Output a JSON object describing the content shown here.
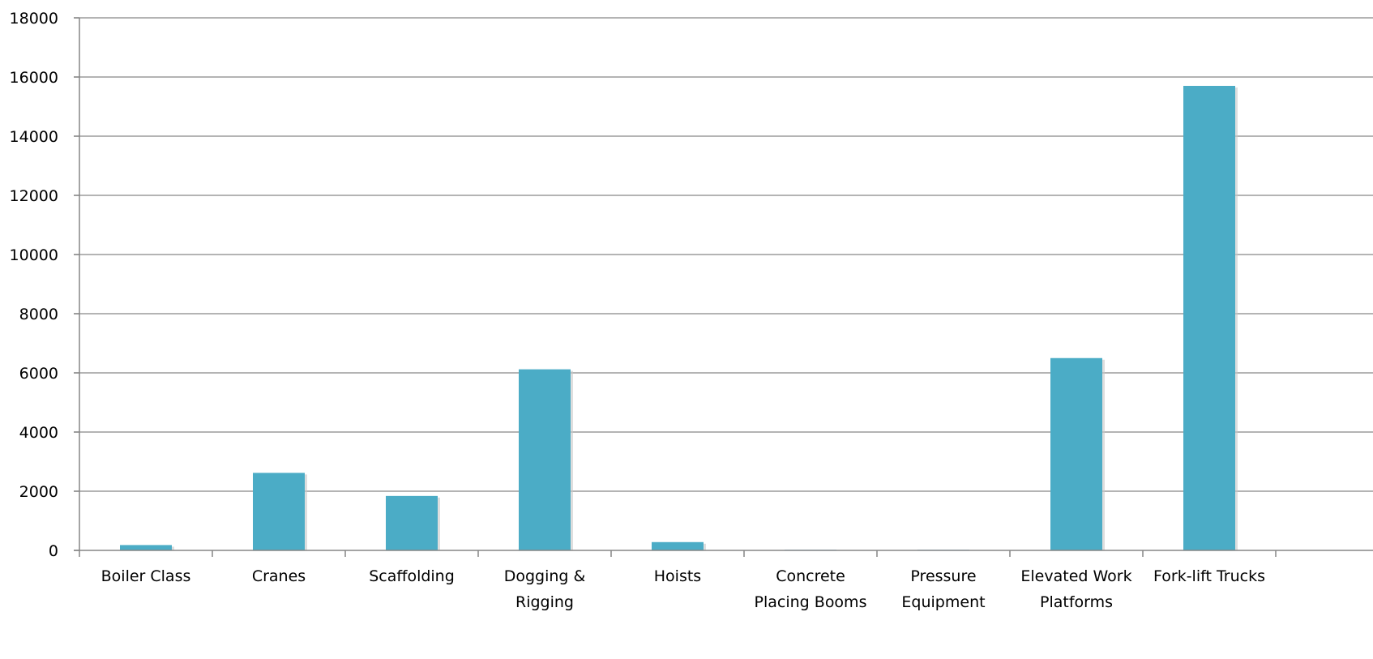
{
  "chart_data": {
    "type": "bar",
    "title": "",
    "xlabel": "",
    "ylabel": "",
    "categories": [
      [
        "Boiler Class"
      ],
      [
        "Cranes"
      ],
      [
        "Scaffolding"
      ],
      [
        "Dogging &",
        "Rigging"
      ],
      [
        "Hoists"
      ],
      [
        "Concrete",
        "Placing Booms"
      ],
      [
        "Pressure",
        "Equipment"
      ],
      [
        "Elevated Work",
        "Platforms"
      ],
      [
        "Fork-lift Trucks"
      ]
    ],
    "values": [
      180,
      2620,
      1840,
      6120,
      280,
      20,
      20,
      6500,
      15700
    ],
    "ylim": [
      0,
      18000
    ],
    "yticks": [
      0,
      2000,
      4000,
      6000,
      8000,
      10000,
      12000,
      14000,
      16000,
      18000
    ],
    "grid": true,
    "colors": {
      "bar": "#4bacc6",
      "bar_shadow": "#c8c8c8",
      "grid": "#868686",
      "axis": "#868686"
    }
  }
}
